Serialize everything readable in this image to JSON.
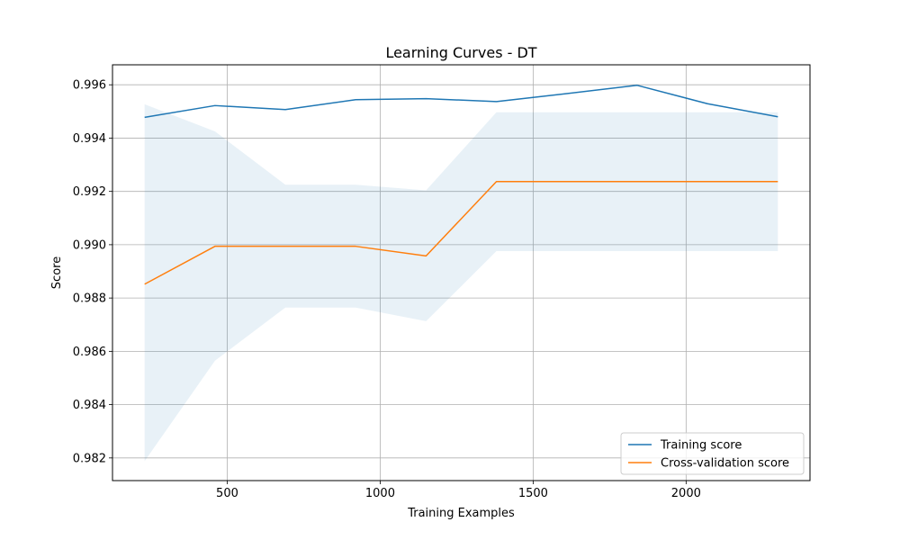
{
  "chart_data": {
    "type": "line",
    "title": "Learning Curves - DT",
    "xlabel": "Training Examples",
    "ylabel": "Score",
    "xlim": [
      125,
      2405
    ],
    "ylim": [
      0.98115,
      0.99675
    ],
    "xticks": [
      500,
      1000,
      1500,
      2000
    ],
    "yticks": [
      0.982,
      0.984,
      0.986,
      0.988,
      0.99,
      0.992,
      0.994,
      0.996
    ],
    "xtick_labels": [
      "500",
      "1000",
      "1500",
      "2000"
    ],
    "ytick_labels": [
      "0.982",
      "0.984",
      "0.986",
      "0.988",
      "0.990",
      "0.992",
      "0.994",
      "0.996"
    ],
    "grid": true,
    "legend_position": "lower-right",
    "x": [
      230,
      460,
      690,
      920,
      1150,
      1380,
      1610,
      1840,
      2070,
      2300
    ],
    "series": [
      {
        "name": "Training score",
        "color": "#1f77b4",
        "values": [
          0.99478,
          0.99522,
          0.99507,
          0.99544,
          0.99548,
          0.99537,
          0.99567,
          0.99598,
          0.99529,
          0.9948
        ]
      },
      {
        "name": "Cross-validation score",
        "color": "#ff7f0e",
        "values": [
          0.98852,
          0.98994,
          0.98994,
          0.98994,
          0.98958,
          0.99237,
          0.99237,
          0.99237,
          0.99237,
          0.99237
        ],
        "band_lower": [
          0.98188,
          0.98565,
          0.98764,
          0.98764,
          0.98713,
          0.98976,
          0.98976,
          0.98976,
          0.98976,
          0.98976
        ],
        "band_upper": [
          0.99527,
          0.99425,
          0.99225,
          0.99225,
          0.99204,
          0.99497,
          0.99497,
          0.99497,
          0.99497,
          0.99497
        ],
        "band_color": "#1f77b4"
      }
    ]
  }
}
